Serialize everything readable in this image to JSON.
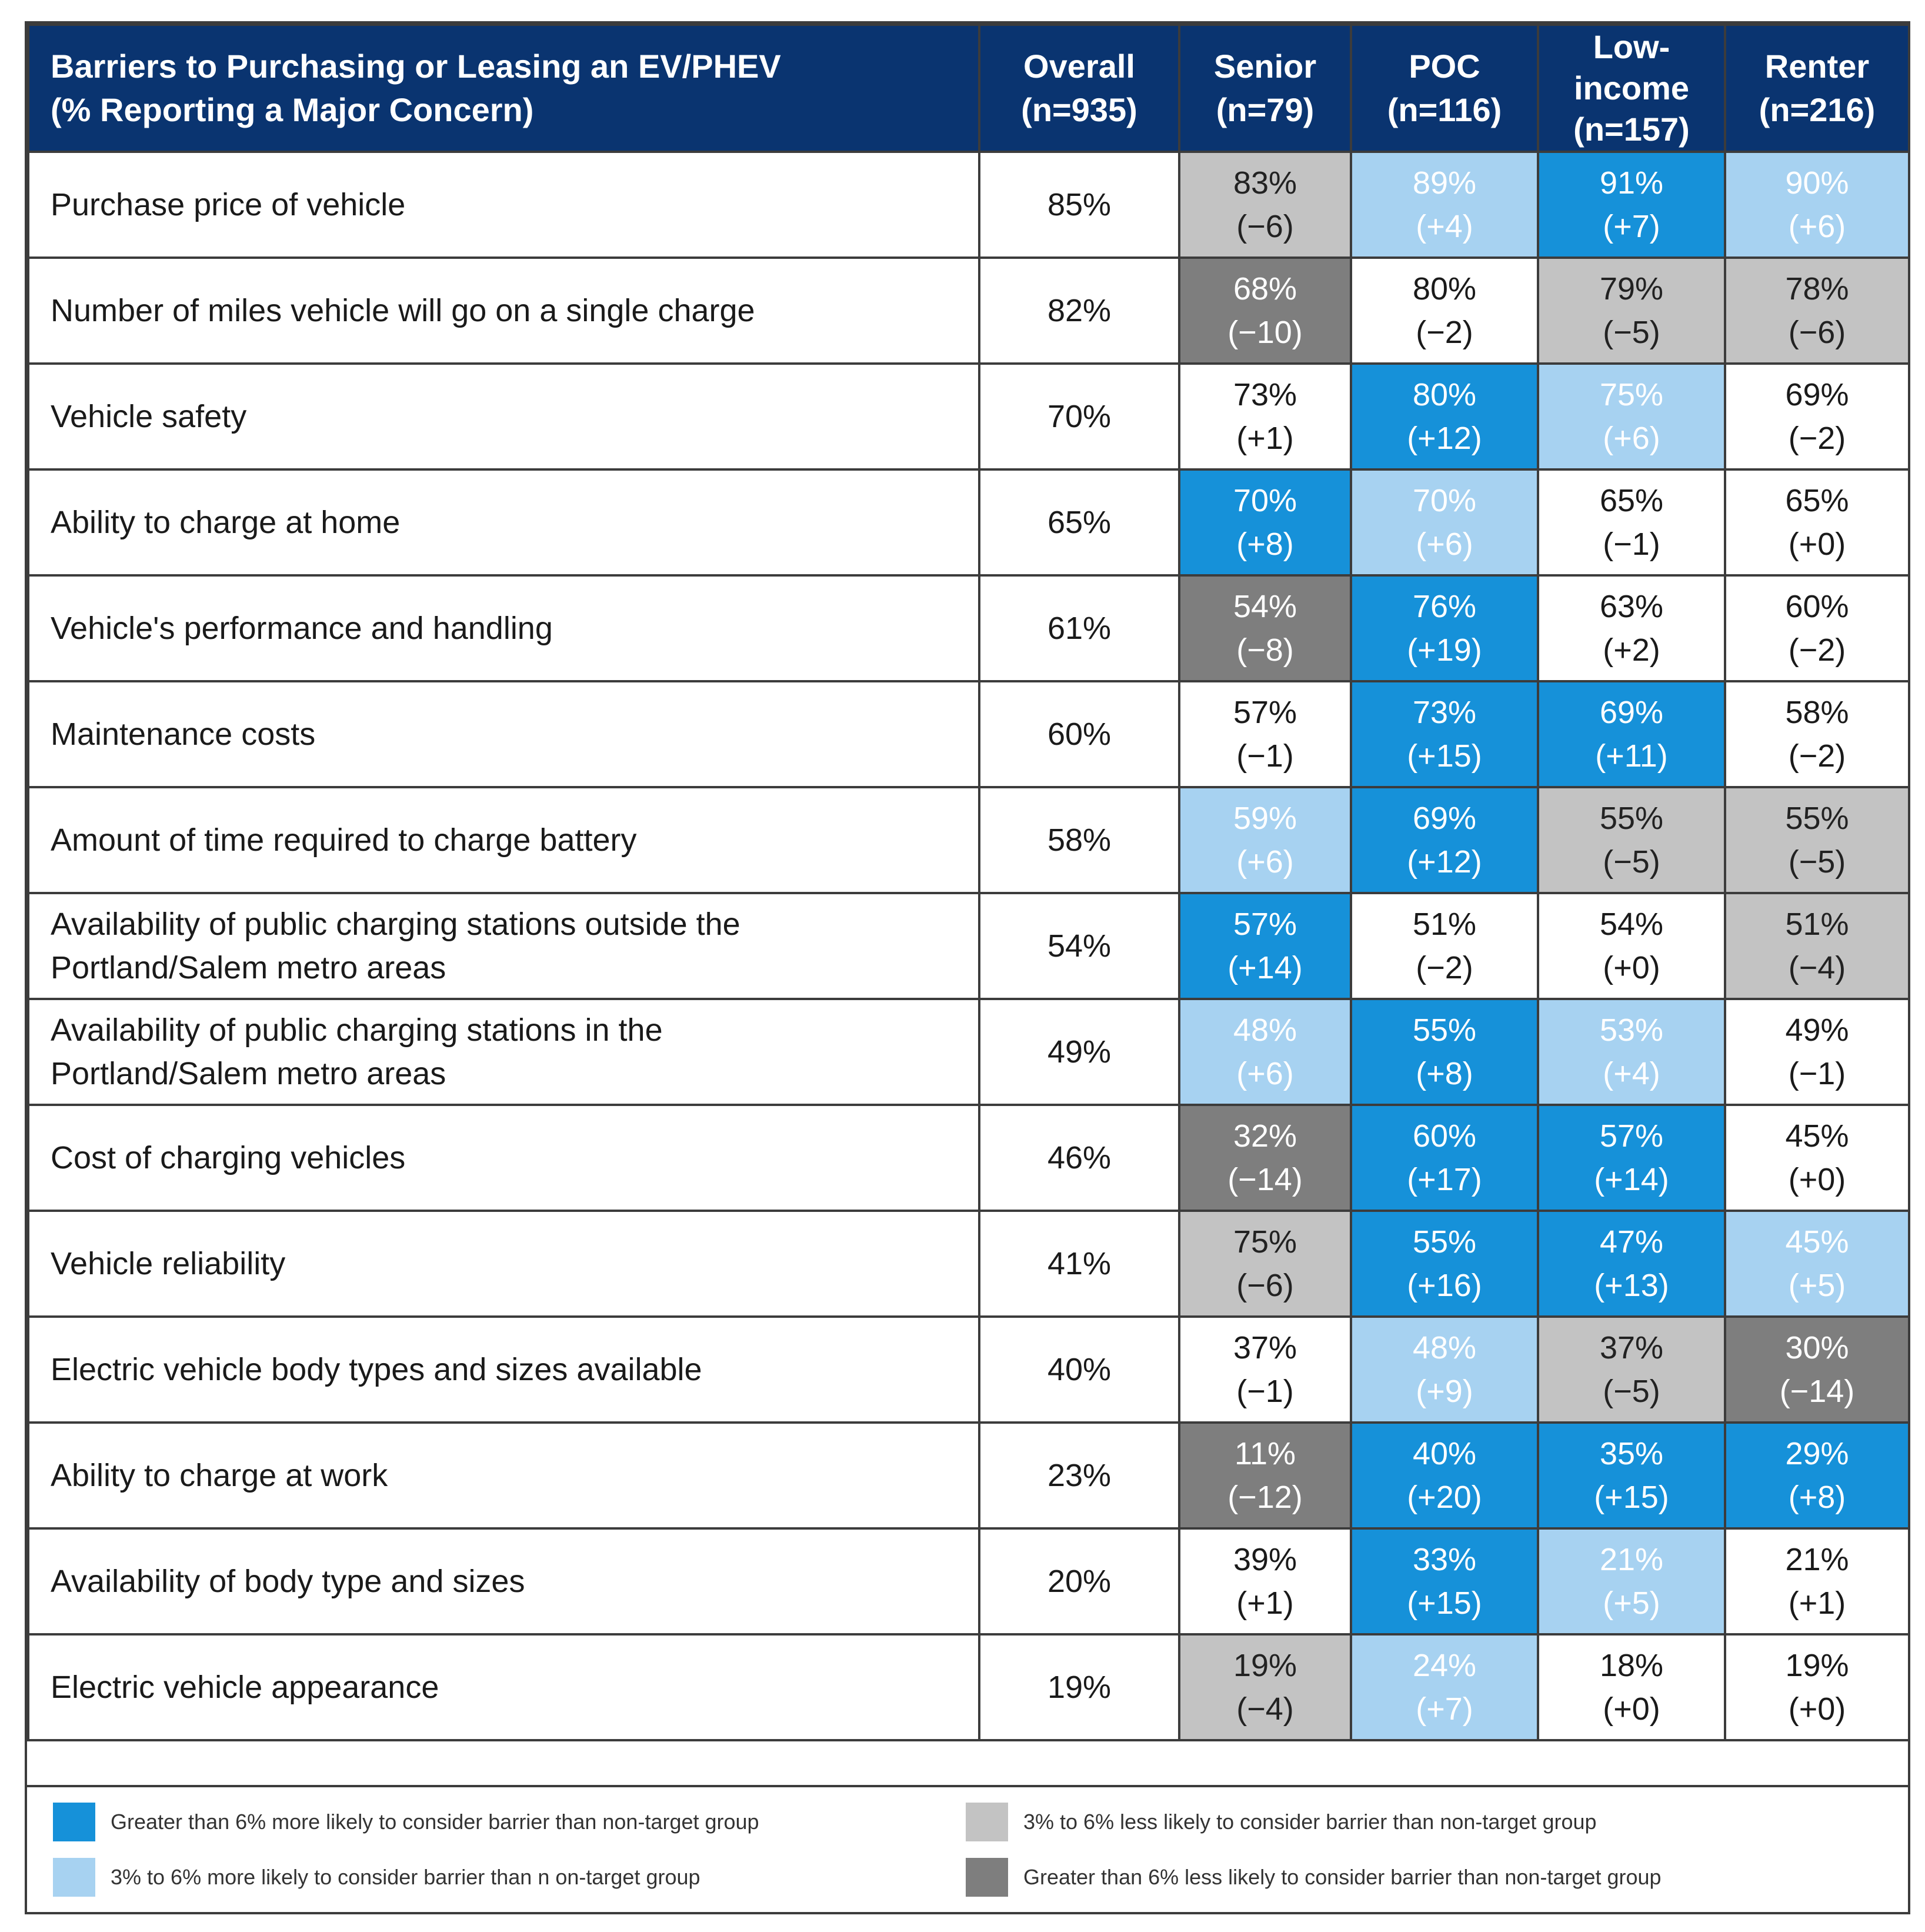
{
  "colors": {
    "header_bg": "#0a3470",
    "bright": "#1691d9",
    "light": "#a7d2f1",
    "lightgray": "#c3c3c3",
    "darkgray": "#7e7e7e"
  },
  "header": {
    "title_line1": "Barriers to Purchasing or Leasing an EV/PHEV",
    "title_line2": "(% Reporting a Major Concern)",
    "columns": [
      {
        "l1": "Overall",
        "l2": "(n=935)"
      },
      {
        "l1": "Senior",
        "l2": "(n=79)"
      },
      {
        "l1": "POC",
        "l2": "(n=116)"
      },
      {
        "l1": "Low-",
        "l2": "income",
        "l3": "(n=157)"
      },
      {
        "l1": "Renter",
        "l2": "(n=216)"
      }
    ]
  },
  "rows": [
    {
      "label": [
        "Purchase price of vehicle"
      ],
      "overall": "85%",
      "cells": [
        {
          "pct": "83%",
          "diff": "(−6)",
          "color": "lightgray"
        },
        {
          "pct": "89%",
          "diff": "(+4)",
          "color": "light"
        },
        {
          "pct": "91%",
          "diff": "(+7)",
          "color": "bright"
        },
        {
          "pct": "90%",
          "diff": "(+6)",
          "color": "light"
        }
      ]
    },
    {
      "label": [
        "Number of miles vehicle will go on a single charge"
      ],
      "overall": "82%",
      "cells": [
        {
          "pct": "68%",
          "diff": "(−10)",
          "color": "darkgray"
        },
        {
          "pct": "80%",
          "diff": "(−2)",
          "color": "none"
        },
        {
          "pct": "79%",
          "diff": "(−5)",
          "color": "lightgray"
        },
        {
          "pct": "78%",
          "diff": "(−6)",
          "color": "lightgray"
        }
      ]
    },
    {
      "label": [
        "Vehicle safety"
      ],
      "overall": "70%",
      "cells": [
        {
          "pct": "73%",
          "diff": "(+1)",
          "color": "none"
        },
        {
          "pct": "80%",
          "diff": "(+12)",
          "color": "bright"
        },
        {
          "pct": "75%",
          "diff": "(+6)",
          "color": "light"
        },
        {
          "pct": "69%",
          "diff": "(−2)",
          "color": "none"
        }
      ]
    },
    {
      "label": [
        "Ability to charge at home"
      ],
      "overall": "65%",
      "cells": [
        {
          "pct": "70%",
          "diff": "(+8)",
          "color": "bright"
        },
        {
          "pct": "70%",
          "diff": "(+6)",
          "color": "light"
        },
        {
          "pct": "65%",
          "diff": "(−1)",
          "color": "none"
        },
        {
          "pct": "65%",
          "diff": "(+0)",
          "color": "none"
        }
      ]
    },
    {
      "label": [
        "Vehicle's performance and handling"
      ],
      "overall": "61%",
      "cells": [
        {
          "pct": "54%",
          "diff": "(−8)",
          "color": "darkgray"
        },
        {
          "pct": "76%",
          "diff": "(+19)",
          "color": "bright"
        },
        {
          "pct": "63%",
          "diff": "(+2)",
          "color": "none"
        },
        {
          "pct": "60%",
          "diff": "(−2)",
          "color": "none"
        }
      ]
    },
    {
      "label": [
        "Maintenance costs"
      ],
      "overall": "60%",
      "cells": [
        {
          "pct": "57%",
          "diff": "(−1)",
          "color": "none"
        },
        {
          "pct": "73%",
          "diff": "(+15)",
          "color": "bright"
        },
        {
          "pct": "69%",
          "diff": "(+11)",
          "color": "bright"
        },
        {
          "pct": "58%",
          "diff": "(−2)",
          "color": "none"
        }
      ]
    },
    {
      "label": [
        "Amount of time required to charge battery"
      ],
      "overall": "58%",
      "cells": [
        {
          "pct": "59%",
          "diff": "(+6)",
          "color": "light"
        },
        {
          "pct": "69%",
          "diff": "(+12)",
          "color": "bright"
        },
        {
          "pct": "55%",
          "diff": "(−5)",
          "color": "lightgray"
        },
        {
          "pct": "55%",
          "diff": "(−5)",
          "color": "lightgray"
        }
      ]
    },
    {
      "label": [
        "Availability of public charging stations outside the",
        "Portland/Salem metro areas"
      ],
      "overall": "54%",
      "cells": [
        {
          "pct": "57%",
          "diff": "(+14)",
          "color": "bright"
        },
        {
          "pct": "51%",
          "diff": "(−2)",
          "color": "none"
        },
        {
          "pct": "54%",
          "diff": "(+0)",
          "color": "none"
        },
        {
          "pct": "51%",
          "diff": "(−4)",
          "color": "lightgray"
        }
      ]
    },
    {
      "label": [
        "Availability of public charging stations in the",
        "Portland/Salem metro areas"
      ],
      "overall": "49%",
      "cells": [
        {
          "pct": "48%",
          "diff": "(+6)",
          "color": "light"
        },
        {
          "pct": "55%",
          "diff": "(+8)",
          "color": "bright"
        },
        {
          "pct": "53%",
          "diff": "(+4)",
          "color": "light"
        },
        {
          "pct": "49%",
          "diff": "(−1)",
          "color": "none"
        }
      ]
    },
    {
      "label": [
        "Cost of charging vehicles"
      ],
      "overall": "46%",
      "cells": [
        {
          "pct": "32%",
          "diff": "(−14)",
          "color": "darkgray"
        },
        {
          "pct": "60%",
          "diff": "(+17)",
          "color": "bright"
        },
        {
          "pct": "57%",
          "diff": "(+14)",
          "color": "bright"
        },
        {
          "pct": "45%",
          "diff": "(+0)",
          "color": "none"
        }
      ]
    },
    {
      "label": [
        "Vehicle reliability"
      ],
      "overall": "41%",
      "cells": [
        {
          "pct": "75%",
          "diff": "(−6)",
          "color": "lightgray"
        },
        {
          "pct": "55%",
          "diff": "(+16)",
          "color": "bright"
        },
        {
          "pct": "47%",
          "diff": "(+13)",
          "color": "bright"
        },
        {
          "pct": "45%",
          "diff": "(+5)",
          "color": "light"
        }
      ]
    },
    {
      "label": [
        "Electric vehicle body types and sizes available"
      ],
      "overall": "40%",
      "cells": [
        {
          "pct": "37%",
          "diff": "(−1)",
          "color": "none"
        },
        {
          "pct": "48%",
          "diff": "(+9)",
          "color": "light"
        },
        {
          "pct": "37%",
          "diff": "(−5)",
          "color": "lightgray"
        },
        {
          "pct": "30%",
          "diff": "(−14)",
          "color": "darkgray"
        }
      ]
    },
    {
      "label": [
        "Ability to charge at work"
      ],
      "overall": "23%",
      "cells": [
        {
          "pct": "11%",
          "diff": "(−12)",
          "color": "darkgray"
        },
        {
          "pct": "40%",
          "diff": "(+20)",
          "color": "bright"
        },
        {
          "pct": "35%",
          "diff": "(+15)",
          "color": "bright"
        },
        {
          "pct": "29%",
          "diff": "(+8)",
          "color": "bright"
        }
      ]
    },
    {
      "label": [
        "Availability of body type and sizes"
      ],
      "overall": "20%",
      "cells": [
        {
          "pct": "39%",
          "diff": "(+1)",
          "color": "none"
        },
        {
          "pct": "33%",
          "diff": "(+15)",
          "color": "bright"
        },
        {
          "pct": "21%",
          "diff": "(+5)",
          "color": "light"
        },
        {
          "pct": "21%",
          "diff": "(+1)",
          "color": "none"
        }
      ]
    },
    {
      "label": [
        "Electric vehicle appearance"
      ],
      "overall": "19%",
      "cells": [
        {
          "pct": "19%",
          "diff": "(−4)",
          "color": "lightgray"
        },
        {
          "pct": "24%",
          "diff": "(+7)",
          "color": "light"
        },
        {
          "pct": "18%",
          "diff": "(+0)",
          "color": "none"
        },
        {
          "pct": "19%",
          "diff": "(+0)",
          "color": "none"
        }
      ]
    }
  ],
  "legend": [
    {
      "text": "Greater than 6% more likely to consider barrier than non-target group",
      "color": "bright"
    },
    {
      "text": "3% to 6% less likely to consider barrier than non-target group",
      "color": "lightgray"
    },
    {
      "text": "3% to 6% more likely to consider barrier than n on-target group",
      "color": "light"
    },
    {
      "text": "Greater than 6% less likely to consider barrier than non-target group",
      "color": "darkgray"
    }
  ]
}
